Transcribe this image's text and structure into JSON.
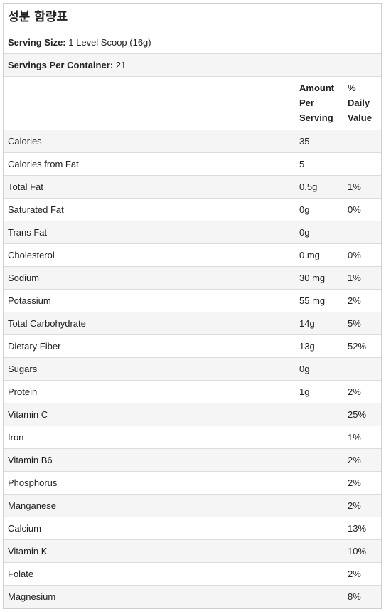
{
  "title": "성분 함량표",
  "serving_size": {
    "label": "Serving Size:",
    "value": "1 Level Scoop (16g)"
  },
  "servings_per_container": {
    "label": "Servings Per Container:",
    "value": "21"
  },
  "header": {
    "amount_lines": [
      "Amount",
      "Per",
      "Serving"
    ],
    "daily_lines": [
      "%",
      "Daily",
      "Value"
    ]
  },
  "rows": [
    {
      "name": "Calories",
      "amount": "35",
      "daily": ""
    },
    {
      "name": "Calories from Fat",
      "amount": "5",
      "daily": ""
    },
    {
      "name": "Total Fat",
      "amount": "0.5g",
      "daily": "1%"
    },
    {
      "name": "Saturated Fat",
      "amount": "0g",
      "daily": "0%"
    },
    {
      "name": "Trans Fat",
      "amount": "0g",
      "daily": ""
    },
    {
      "name": "Cholesterol",
      "amount": "0 mg",
      "daily": "0%"
    },
    {
      "name": "Sodium",
      "amount": "30 mg",
      "daily": "1%"
    },
    {
      "name": "Potassium",
      "amount": "55 mg",
      "daily": "2%"
    },
    {
      "name": "Total Carbohydrate",
      "amount": "14g",
      "daily": "5%"
    },
    {
      "name": "Dietary Fiber",
      "amount": "13g",
      "daily": "52%"
    },
    {
      "name": "Sugars",
      "amount": "0g",
      "daily": ""
    },
    {
      "name": "Protein",
      "amount": "1g",
      "daily": "2%"
    },
    {
      "name": "Vitamin C",
      "amount": "",
      "daily": "25%"
    },
    {
      "name": "Iron",
      "amount": "",
      "daily": "1%"
    },
    {
      "name": "Vitamin B6",
      "amount": "",
      "daily": "2%"
    },
    {
      "name": "Phosphorus",
      "amount": "",
      "daily": "2%"
    },
    {
      "name": "Manganese",
      "amount": "",
      "daily": "2%"
    },
    {
      "name": "Calcium",
      "amount": "",
      "daily": "13%"
    },
    {
      "name": "Vitamin K",
      "amount": "",
      "daily": "10%"
    },
    {
      "name": "Folate",
      "amount": "",
      "daily": "2%"
    },
    {
      "name": "Magnesium",
      "amount": "",
      "daily": "8%"
    }
  ]
}
